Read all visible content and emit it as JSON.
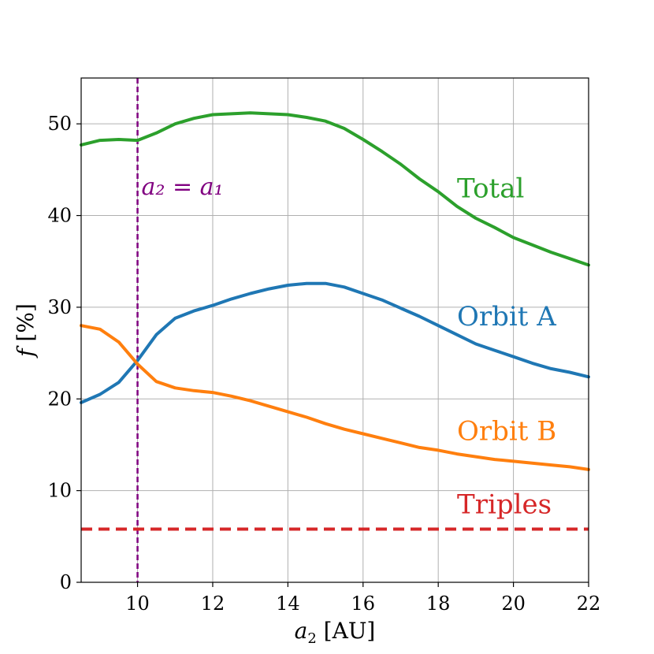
{
  "chart_data": {
    "type": "line",
    "title": "",
    "xlabel": "a₂ [AU]",
    "ylabel": "f [%]",
    "xlim": [
      8.5,
      22
    ],
    "ylim": [
      0,
      55
    ],
    "xticks": [
      10,
      12,
      14,
      16,
      18,
      20,
      22
    ],
    "yticks": [
      0,
      10,
      20,
      30,
      40,
      50
    ],
    "xtick_labels": [
      "10",
      "12",
      "14",
      "16",
      "18",
      "20",
      "22"
    ],
    "ytick_labels": [
      "0",
      "10",
      "20",
      "30",
      "40",
      "50"
    ],
    "grid": true,
    "vertical_line": {
      "x": 10,
      "label": "a₂ = a₁",
      "color": "#800080",
      "style": "dashed"
    },
    "series": [
      {
        "name": "Total",
        "color": "#2ca02c",
        "style": "solid",
        "x": [
          8.5,
          9.0,
          9.5,
          10.0,
          10.5,
          11.0,
          11.5,
          12.0,
          12.5,
          13.0,
          13.5,
          14.0,
          14.5,
          15.0,
          15.5,
          16.0,
          16.5,
          17.0,
          17.5,
          18.0,
          18.5,
          19.0,
          19.5,
          20.0,
          20.5,
          21.0,
          21.5,
          22.0
        ],
        "values": [
          47.7,
          48.2,
          48.3,
          48.2,
          49.0,
          50.0,
          50.6,
          51.0,
          51.1,
          51.2,
          51.1,
          51.0,
          50.7,
          50.3,
          49.5,
          48.3,
          47.0,
          45.6,
          44.0,
          42.6,
          41.0,
          39.7,
          38.7,
          37.6,
          36.8,
          36.0,
          35.3,
          34.6
        ],
        "label_text": "Total"
      },
      {
        "name": "Orbit A",
        "color": "#1f77b4",
        "style": "solid",
        "x": [
          8.5,
          9.0,
          9.5,
          10.0,
          10.5,
          11.0,
          11.5,
          12.0,
          12.5,
          13.0,
          13.5,
          14.0,
          14.5,
          15.0,
          15.5,
          16.0,
          16.5,
          17.0,
          17.5,
          18.0,
          18.5,
          19.0,
          19.5,
          20.0,
          20.5,
          21.0,
          21.5,
          22.0
        ],
        "values": [
          19.6,
          20.5,
          21.8,
          24.2,
          27.0,
          28.8,
          29.6,
          30.2,
          30.9,
          31.5,
          32.0,
          32.4,
          32.6,
          32.6,
          32.2,
          31.5,
          30.8,
          29.9,
          29.0,
          28.0,
          27.0,
          26.0,
          25.3,
          24.6,
          23.9,
          23.3,
          22.9,
          22.4
        ],
        "label_text": "Orbit A"
      },
      {
        "name": "Orbit B",
        "color": "#ff7f0e",
        "style": "solid",
        "x": [
          8.5,
          9.0,
          9.5,
          10.0,
          10.5,
          11.0,
          11.5,
          12.0,
          12.5,
          13.0,
          13.5,
          14.0,
          14.5,
          15.0,
          15.5,
          16.0,
          16.5,
          17.0,
          17.5,
          18.0,
          18.5,
          19.0,
          19.5,
          20.0,
          20.5,
          21.0,
          21.5,
          22.0
        ],
        "values": [
          28.0,
          27.6,
          26.2,
          23.8,
          21.9,
          21.2,
          20.9,
          20.7,
          20.3,
          19.8,
          19.2,
          18.6,
          18.0,
          17.3,
          16.7,
          16.2,
          15.7,
          15.2,
          14.7,
          14.4,
          14.0,
          13.7,
          13.4,
          13.2,
          13.0,
          12.8,
          12.6,
          12.3
        ],
        "label_text": "Orbit B"
      },
      {
        "name": "Triples",
        "color": "#d62728",
        "style": "dashed",
        "x": [
          8.5,
          22.0
        ],
        "values": [
          5.8,
          5.8
        ],
        "label_text": "Triples"
      }
    ]
  }
}
